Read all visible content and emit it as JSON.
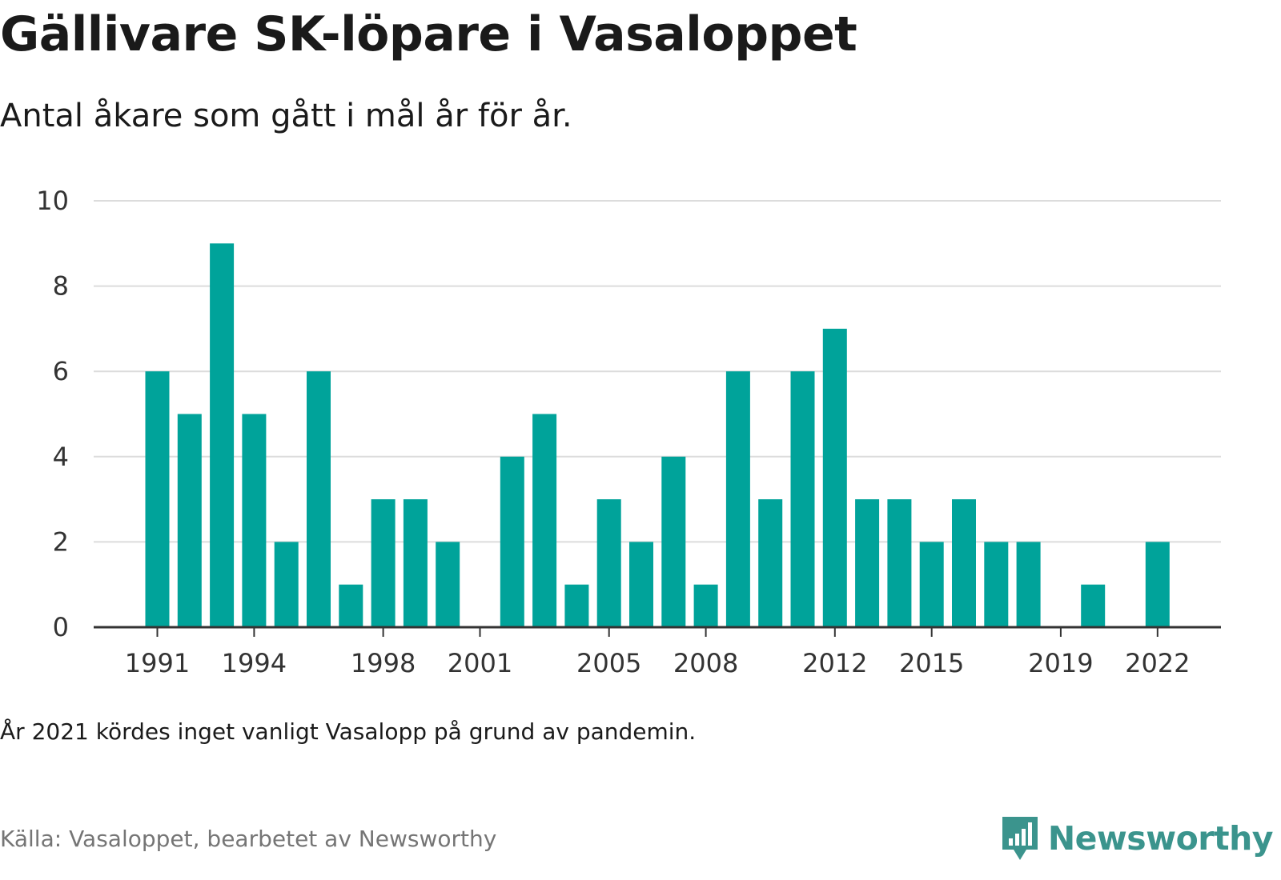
{
  "title": "Gällivare SK-löpare i Vasaloppet",
  "subtitle": "Antal åkare som gått i mål år för år.",
  "note": "År 2021 kördes inget vanligt Vasalopp på grund av pandemin.",
  "source": "Källa: Vasaloppet, bearbetet av Newsworthy",
  "brand": {
    "name": "Newsworthy",
    "icon": "newsworthy-logo-icon",
    "color": "#3b948d"
  },
  "chart_data": {
    "type": "bar",
    "categories": [
      1991,
      1992,
      1993,
      1994,
      1995,
      1996,
      1997,
      1998,
      1999,
      2000,
      2001,
      2002,
      2003,
      2004,
      2005,
      2006,
      2007,
      2008,
      2009,
      2010,
      2011,
      2012,
      2013,
      2014,
      2015,
      2016,
      2017,
      2018,
      2019,
      2020,
      2021,
      2022
    ],
    "values": [
      6,
      5,
      9,
      5,
      2,
      6,
      1,
      3,
      3,
      2,
      0,
      4,
      5,
      1,
      3,
      2,
      4,
      1,
      6,
      3,
      6,
      7,
      3,
      3,
      2,
      3,
      2,
      2,
      0,
      1,
      0,
      2
    ],
    "x_tick_labels": [
      "1991",
      "1994",
      "1998",
      "2001",
      "2005",
      "2008",
      "2012",
      "2015",
      "2019",
      "2022"
    ],
    "y_ticks": [
      0,
      2,
      4,
      6,
      8,
      10
    ],
    "ylim": [
      0,
      10
    ],
    "grid": true,
    "bar_color": "#00a39a"
  }
}
